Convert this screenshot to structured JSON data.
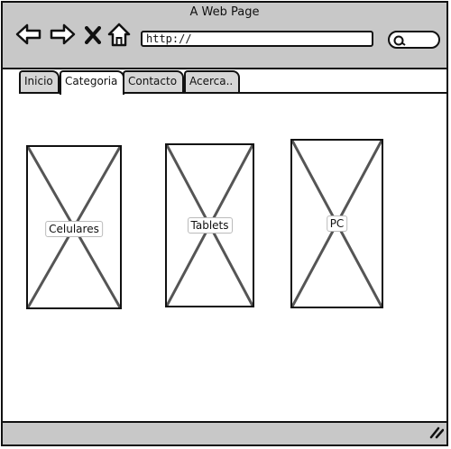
{
  "window": {
    "title": "A Web Page"
  },
  "toolbar": {
    "back_icon": "back-arrow-icon",
    "forward_icon": "forward-arrow-icon",
    "stop_icon": "close-x-icon",
    "home_icon": "home-icon",
    "url": "http://",
    "search_icon": "search-icon"
  },
  "tabs": [
    {
      "label": "Inicio",
      "active": false
    },
    {
      "label": "Categoria",
      "active": true
    },
    {
      "label": "Contacto",
      "active": false
    },
    {
      "label": "Acerca..",
      "active": false
    }
  ],
  "categories": [
    {
      "label": "Celulares"
    },
    {
      "label": "Tablets"
    },
    {
      "label": "PC"
    }
  ],
  "statusbar": {
    "grip_icon": "resize-grip-icon"
  },
  "colors": {
    "chrome": "#c8c8c8",
    "border": "#111111",
    "image_x": "#555555"
  }
}
